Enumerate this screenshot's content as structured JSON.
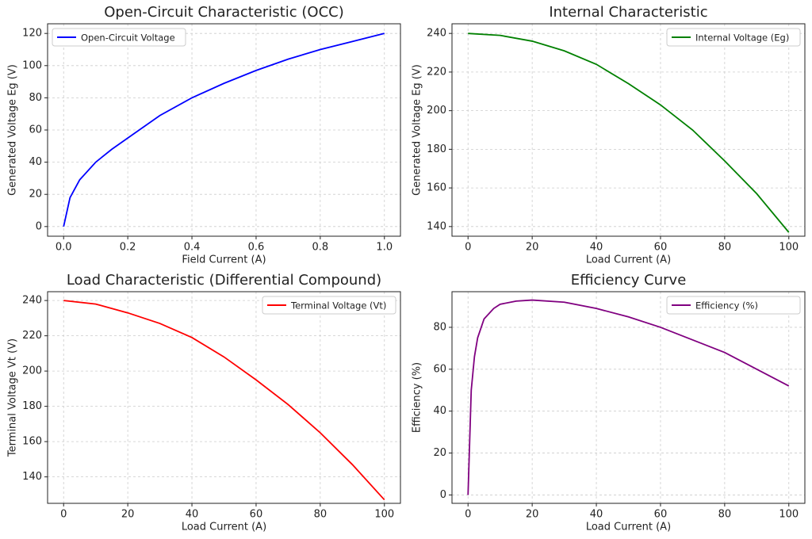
{
  "chart_data": [
    {
      "type": "line",
      "title": "Open-Circuit Characteristic (OCC)",
      "xlabel": "Field Current (A)",
      "ylabel": "Generated Voltage Eg (V)",
      "x": [
        0,
        0.02,
        0.05,
        0.1,
        0.15,
        0.2,
        0.3,
        0.4,
        0.5,
        0.6,
        0.7,
        0.8,
        0.9,
        1.0
      ],
      "series": [
        {
          "name": "Open-Circuit Voltage",
          "color": "#0000ff",
          "values": [
            0,
            18,
            29,
            40,
            48,
            55,
            69,
            80,
            89,
            97,
            104,
            110,
            115,
            120
          ]
        }
      ],
      "xlim": [
        -0.05,
        1.05
      ],
      "ylim": [
        -6,
        126
      ],
      "xticks": [
        {
          "value": 0,
          "label": "0.0"
        },
        0.2,
        0.4,
        0.6,
        0.8,
        {
          "value": 1,
          "label": "1.0"
        }
      ],
      "yticks": [
        0,
        20,
        40,
        60,
        80,
        100,
        120
      ],
      "grid": true,
      "legend": "upper-left"
    },
    {
      "type": "line",
      "title": "Internal Characteristic",
      "xlabel": "Load Current (A)",
      "ylabel": "Generated Voltage Eg (V)",
      "x": [
        0,
        10,
        20,
        30,
        40,
        50,
        60,
        70,
        80,
        90,
        100
      ],
      "series": [
        {
          "name": "Internal Voltage (Eg)",
          "color": "#008000",
          "values": [
            240,
            239,
            236,
            231,
            224,
            214,
            203,
            190,
            174,
            157,
            137
          ]
        }
      ],
      "xlim": [
        -5,
        105
      ],
      "ylim": [
        135,
        245
      ],
      "xticks": [
        0,
        20,
        40,
        60,
        80,
        100
      ],
      "yticks": [
        140,
        160,
        180,
        200,
        220,
        240
      ],
      "grid": true,
      "legend": "upper-right"
    },
    {
      "type": "line",
      "title": "Load Characteristic (Differential Compound)",
      "xlabel": "Load Current (A)",
      "ylabel": "Terminal Voltage Vt (V)",
      "x": [
        0,
        10,
        20,
        30,
        40,
        50,
        60,
        70,
        80,
        90,
        100
      ],
      "series": [
        {
          "name": "Terminal Voltage (Vt)",
          "color": "#ff0000",
          "values": [
            240,
            238,
            233,
            227,
            219,
            208,
            195,
            181,
            165,
            147,
            127
          ]
        }
      ],
      "xlim": [
        -5,
        105
      ],
      "ylim": [
        125,
        245
      ],
      "xticks": [
        0,
        20,
        40,
        60,
        80,
        100
      ],
      "yticks": [
        140,
        160,
        180,
        200,
        220,
        240
      ],
      "grid": true,
      "legend": "upper-right"
    },
    {
      "type": "line",
      "title": "Efficiency Curve",
      "xlabel": "Load Current (A)",
      "ylabel": "Efficiency (%)",
      "x": [
        0,
        1,
        2,
        3,
        5,
        8,
        10,
        15,
        20,
        30,
        40,
        50,
        60,
        70,
        80,
        90,
        100
      ],
      "series": [
        {
          "name": "Efficiency (%)",
          "color": "#800080",
          "values": [
            0,
            50,
            66,
            75,
            84,
            89,
            91,
            92.5,
            93,
            92,
            89,
            85,
            80,
            74,
            68,
            60,
            52
          ]
        }
      ],
      "xlim": [
        -5,
        105
      ],
      "ylim": [
        -4,
        97
      ],
      "xticks": [
        0,
        20,
        40,
        60,
        80,
        100
      ],
      "yticks": [
        0,
        20,
        40,
        60,
        80
      ],
      "grid": true,
      "legend": "upper-right"
    }
  ]
}
